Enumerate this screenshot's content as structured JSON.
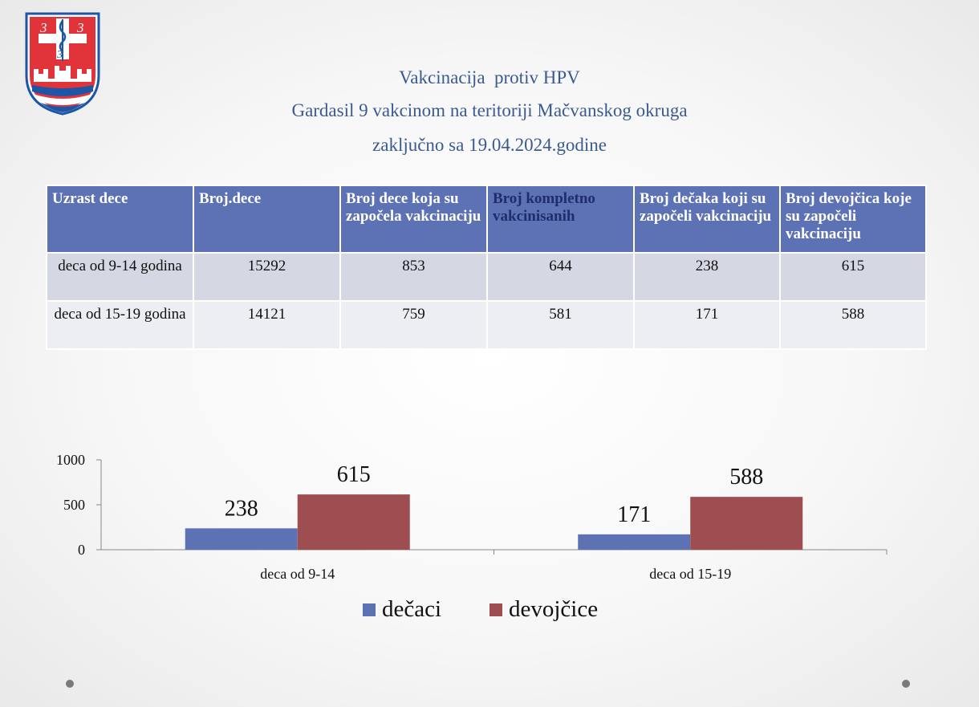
{
  "title_lines": [
    "Vakcinacija  protiv HPV",
    "Gardasil 9 vakcinom na teritoriji Mačvanskog okruga",
    "zaključno sa 19.04.2024.godine"
  ],
  "logo": {
    "digits": [
      "3",
      "3",
      "3"
    ]
  },
  "table": {
    "headers": [
      "Uzrast dece",
      "Broj.dece",
      "Broj dece koja su započela vakcinaciju",
      "Broj kompletno vakcinisanih",
      "Broj dečaka koji su započeli vakcinaciju",
      "Broj  devojčica koje su započeli vakcinaciju"
    ],
    "rows": [
      [
        "deca od 9-14 godina",
        "15292",
        "853",
        "644",
        "238",
        "615"
      ],
      [
        "deca od 15-19 godina",
        "14121",
        "759",
        "581",
        "171",
        "588"
      ]
    ]
  },
  "colors": {
    "title": "#3b5a8f",
    "header_bg": "#5c72b4",
    "row1_bg": "#d5d8e3",
    "row2_bg": "#eceef3",
    "boys": "#5c72b4",
    "girls": "#9e4e50"
  },
  "chart_data": {
    "type": "bar",
    "categories": [
      "deca od 9-14",
      "deca od 15-19"
    ],
    "series": [
      {
        "name": "dečaci",
        "values": [
          238,
          171
        ],
        "color": "#5c72b4"
      },
      {
        "name": "devojčice",
        "values": [
          615,
          588
        ],
        "color": "#9e4e50"
      }
    ],
    "yticks": [
      0,
      500,
      1000
    ],
    "ylim": [
      0,
      1000
    ],
    "data_labels": true,
    "legend": "bottom",
    "grid": false
  }
}
